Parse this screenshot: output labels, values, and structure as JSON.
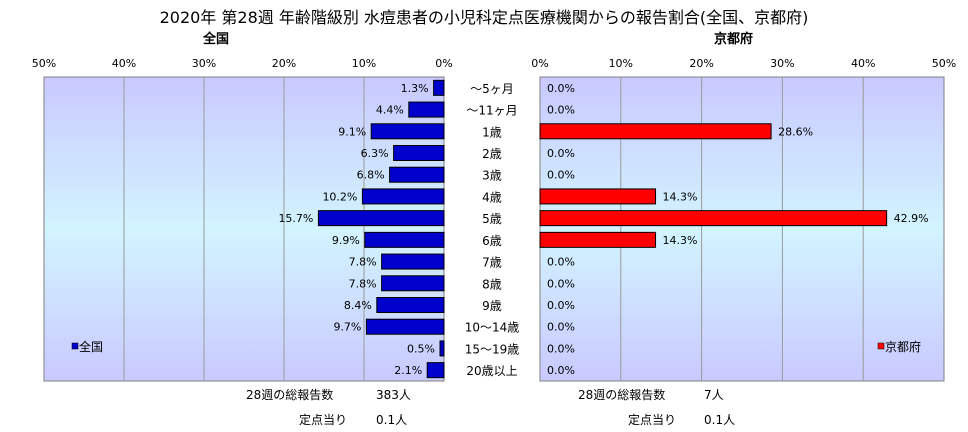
{
  "title": "2020年 第28週 年齢階級別 水痘患者の小児科定点医療機関からの報告割合(全国、京都府)",
  "chart_data": [
    {
      "type": "bar",
      "orientation": "horizontal",
      "subtitle": "全国",
      "legend": "全国",
      "legend_position": "bottom-left",
      "color": "#0000cc",
      "xlim": [
        0,
        50
      ],
      "xticks": [
        "50%",
        "40%",
        "30%",
        "20%",
        "10%",
        "0%"
      ],
      "categories": [
        "～5ヶ月",
        "～11ヶ月",
        "1歳",
        "2歳",
        "3歳",
        "4歳",
        "5歳",
        "6歳",
        "7歳",
        "8歳",
        "9歳",
        "10～14歳",
        "15～19歳",
        "20歳以上"
      ],
      "values": [
        1.3,
        4.4,
        9.1,
        6.3,
        6.8,
        10.2,
        15.7,
        9.9,
        7.8,
        7.8,
        8.4,
        9.7,
        0.5,
        2.1
      ],
      "labels": [
        "1.3%",
        "4.4%",
        "9.1%",
        "6.3%",
        "6.8%",
        "10.2%",
        "15.7%",
        "9.9%",
        "7.8%",
        "7.8%",
        "8.4%",
        "9.7%",
        "0.5%",
        "2.1%"
      ],
      "grid": true
    },
    {
      "type": "bar",
      "orientation": "horizontal",
      "subtitle": "京都府",
      "legend": "京都府",
      "legend_position": "bottom-right",
      "color": "#ff0000",
      "xlim": [
        0,
        50
      ],
      "xticks": [
        "0%",
        "10%",
        "20%",
        "30%",
        "40%",
        "50%"
      ],
      "categories": [
        "～5ヶ月",
        "～11ヶ月",
        "1歳",
        "2歳",
        "3歳",
        "4歳",
        "5歳",
        "6歳",
        "7歳",
        "8歳",
        "9歳",
        "10～14歳",
        "15～19歳",
        "20歳以上"
      ],
      "values": [
        0.0,
        0.0,
        28.6,
        0.0,
        0.0,
        14.3,
        42.9,
        14.3,
        0.0,
        0.0,
        0.0,
        0.0,
        0.0,
        0.0
      ],
      "labels": [
        "0.0%",
        "0.0%",
        "28.6%",
        "0.0%",
        "0.0%",
        "14.3%",
        "42.9%",
        "14.3%",
        "0.0%",
        "0.0%",
        "0.0%",
        "0.0%",
        "0.0%",
        "0.0%"
      ],
      "grid": true
    }
  ],
  "footer": {
    "national": {
      "total_label": "28週の総報告数",
      "total_value": "383人",
      "per_label": "定点当り",
      "per_value": "0.1人"
    },
    "kyoto": {
      "total_label": "28週の総報告数",
      "total_value": "7人",
      "per_label": "定点当り",
      "per_value": "0.1人"
    }
  }
}
